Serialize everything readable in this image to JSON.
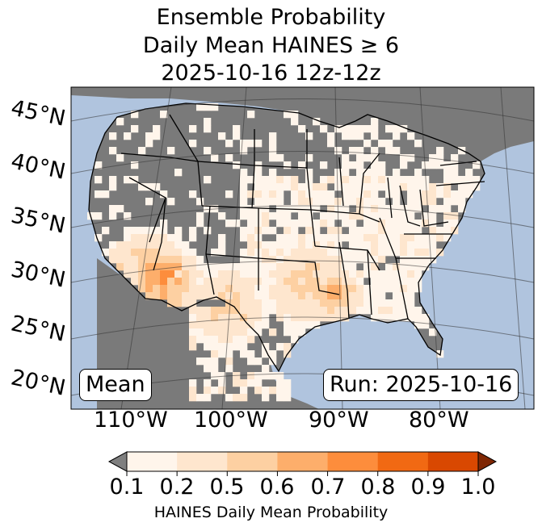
{
  "title": {
    "line1": "Ensemble Probability",
    "line2": "Daily Mean HAINES ≥ 6",
    "line3": "2025-10-16 12z-12z"
  },
  "lat_labels": [
    "45°N",
    "40°N",
    "35°N",
    "30°N",
    "25°N",
    "20°N"
  ],
  "lon_labels": [
    "110°W",
    "100°W",
    "90°W",
    "80°W"
  ],
  "badges": {
    "stat": "Mean",
    "run": "Run: 2025-10-16"
  },
  "colorbar": {
    "ticks": [
      "0.1",
      "0.2",
      "0.5",
      "0.6",
      "0.7",
      "0.8",
      "0.9",
      "1.0"
    ],
    "colors": [
      "#fff5eb",
      "#fee6ce",
      "#fdd0a2",
      "#fdae6b",
      "#fd8d3c",
      "#f16913",
      "#d94801",
      "#a63603"
    ],
    "under_color": "#7f7f7f",
    "over_color": "#7f2704",
    "label": "HAINES Daily Mean Probability"
  },
  "map_colors": {
    "ocean": "#b0c4de",
    "land_below_threshold": "#7a7a7a"
  }
}
